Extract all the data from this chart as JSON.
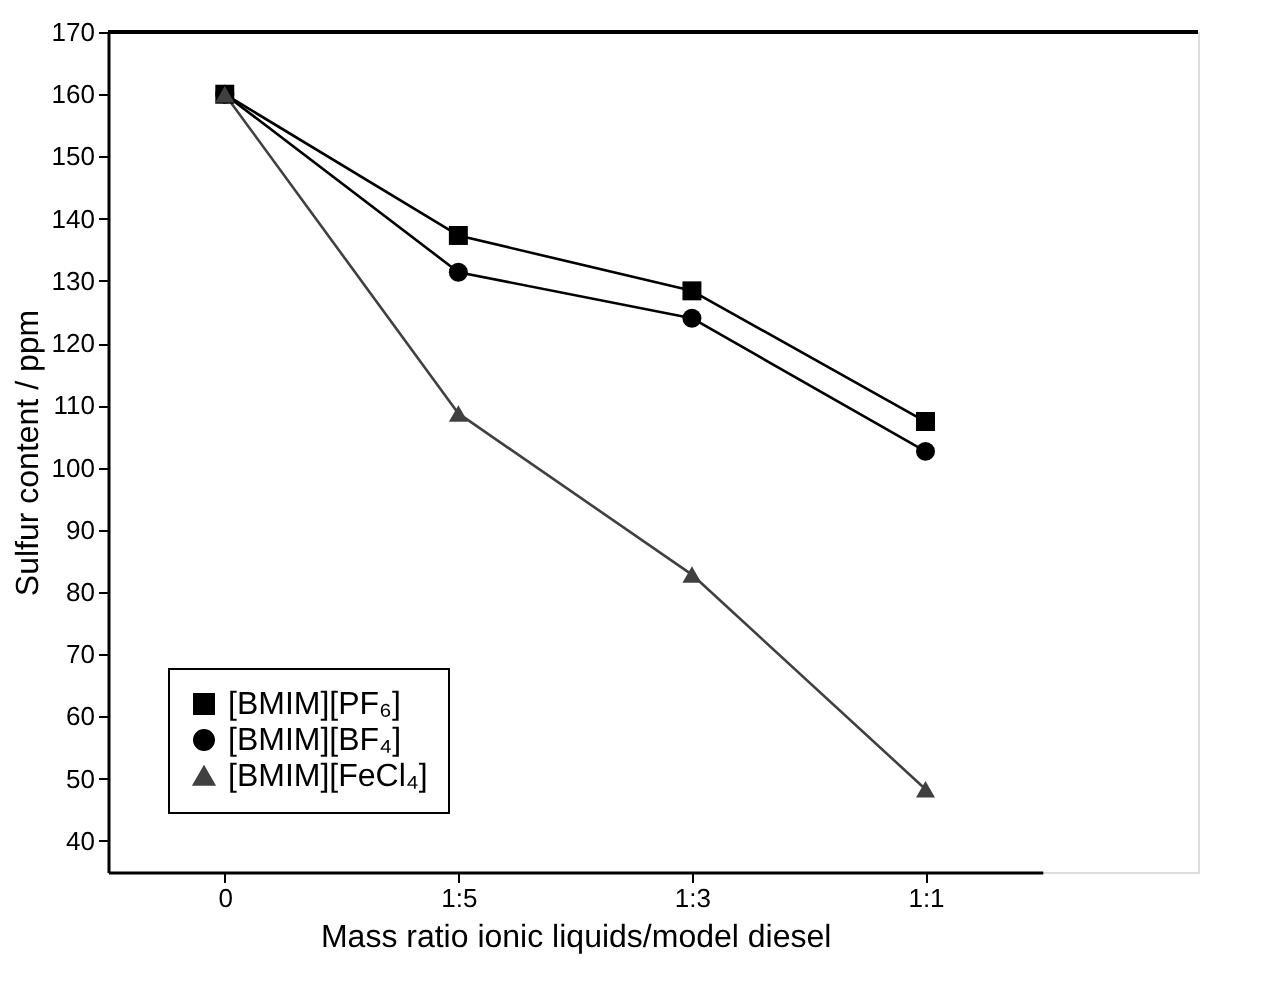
{
  "chart_data": {
    "type": "line",
    "xlabel": "Mass ratio ionic liquids/model diesel",
    "ylabel": "Sulfur content / ppm",
    "categories": [
      "0",
      "1:5",
      "1:3",
      "1:1"
    ],
    "series": [
      {
        "name": "[BMIM][PF₆]",
        "color": "#000000",
        "marker": "square",
        "values": [
          160,
          137.3,
          128.4,
          107.4
        ]
      },
      {
        "name": "[BMIM][BF₄]",
        "color": "#000000",
        "marker": "circle",
        "values": [
          160,
          131.4,
          124,
          102.6
        ]
      },
      {
        "name": "[BMIM][FeCl₄]",
        "color": "#404040",
        "marker": "triangle",
        "values": [
          160,
          108.7,
          82.8,
          48.3
        ]
      }
    ],
    "ylim": [
      35,
      170
    ],
    "yticks": [
      40,
      50,
      60,
      70,
      80,
      90,
      100,
      110,
      120,
      130,
      140,
      150,
      160,
      170
    ],
    "grid": false,
    "legend": "bottom left",
    "line_style": "solid"
  }
}
